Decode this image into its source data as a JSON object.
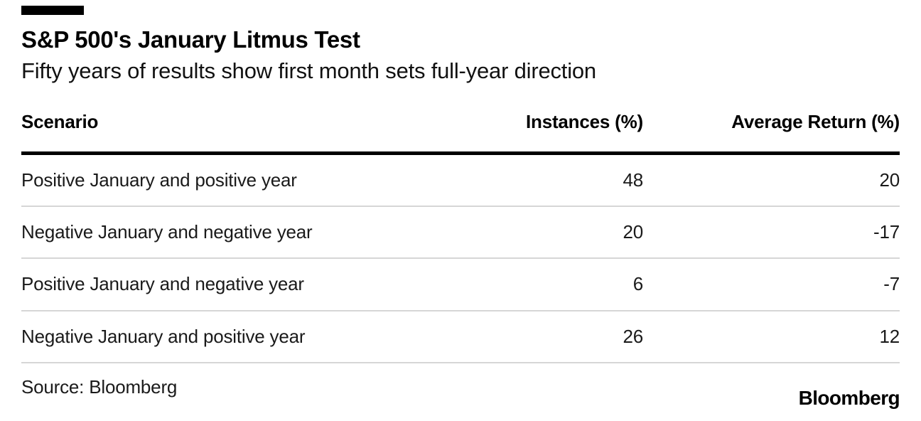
{
  "accent_color": "#000000",
  "divider_color": "#d6d6d6",
  "chart_data": {
    "type": "table",
    "title": "S&P 500's January Litmus Test",
    "subtitle": "Fifty years of results show first month sets full-year direction",
    "columns": [
      "Scenario",
      "Instances (%)",
      "Average Return (%)"
    ],
    "rows": [
      {
        "scenario": "Positive January and positive year",
        "instances": 48,
        "avg_return": 20
      },
      {
        "scenario": "Negative January and negative year",
        "instances": 20,
        "avg_return": -17
      },
      {
        "scenario": "Positive January and negative year",
        "instances": 6,
        "avg_return": -7
      },
      {
        "scenario": "Negative January and positive year",
        "instances": 26,
        "avg_return": 12
      }
    ],
    "source_label": "Source: Bloomberg",
    "brand": "Bloomberg"
  }
}
